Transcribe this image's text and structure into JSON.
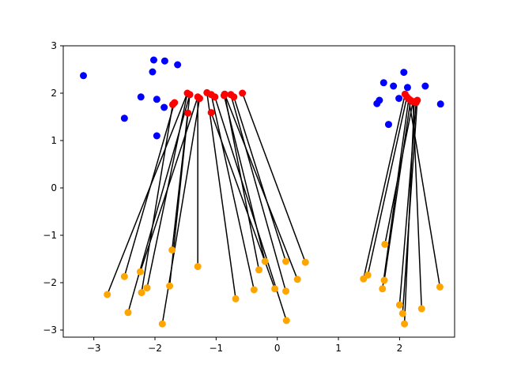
{
  "chart_data": {
    "type": "scatter",
    "title": "",
    "xlabel": "",
    "ylabel": "",
    "xlim": [
      -3.5,
      2.9
    ],
    "ylim": [
      -3.15,
      3.0
    ],
    "grid": false,
    "xticks": [
      -3,
      -2,
      -1,
      0,
      1,
      2
    ],
    "yticks": [
      -3,
      -2,
      -1,
      0,
      1,
      2,
      3
    ],
    "xtick_labels": [
      "−3",
      "−2",
      "−1",
      "0",
      "1",
      "2"
    ],
    "ytick_labels": [
      "−3",
      "−2",
      "−1",
      "0",
      "1",
      "2",
      "3"
    ],
    "colors": {
      "blue": "#0000ff",
      "red": "#ff0000",
      "orange": "#ffa500",
      "line": "#000000"
    },
    "blue_points": [
      [
        -3.17,
        2.37
      ],
      [
        -2.02,
        2.7
      ],
      [
        -1.84,
        2.68
      ],
      [
        -1.63,
        2.6
      ],
      [
        -2.04,
        2.45
      ],
      [
        -2.23,
        1.92
      ],
      [
        -1.97,
        1.87
      ],
      [
        -1.85,
        1.7
      ],
      [
        -2.5,
        1.47
      ],
      [
        -1.97,
        1.1
      ],
      [
        2.07,
        2.44
      ],
      [
        1.74,
        2.22
      ],
      [
        1.9,
        2.15
      ],
      [
        2.13,
        2.12
      ],
      [
        2.42,
        2.15
      ],
      [
        1.99,
        1.89
      ],
      [
        1.67,
        1.85
      ],
      [
        1.63,
        1.78
      ],
      [
        2.67,
        1.77
      ],
      [
        1.82,
        1.34
      ]
    ],
    "red_points": [
      [
        -1.47,
        2.0
      ],
      [
        -1.43,
        1.97
      ],
      [
        -1.3,
        1.92
      ],
      [
        -1.27,
        1.89
      ],
      [
        -1.15,
        2.01
      ],
      [
        -1.08,
        1.97
      ],
      [
        -1.02,
        1.92
      ],
      [
        -0.87,
        1.95
      ],
      [
        -0.86,
        1.98
      ],
      [
        -0.76,
        1.97
      ],
      [
        -0.71,
        1.92
      ],
      [
        -0.57,
        2.0
      ],
      [
        -1.68,
        1.8
      ],
      [
        -1.71,
        1.76
      ],
      [
        -1.46,
        1.58
      ],
      [
        -1.08,
        1.59
      ],
      [
        2.09,
        1.98
      ],
      [
        2.12,
        1.92
      ],
      [
        2.15,
        1.88
      ],
      [
        2.18,
        1.85
      ],
      [
        2.22,
        1.82
      ],
      [
        2.27,
        1.8
      ],
      [
        2.29,
        1.85
      ],
      [
        2.24,
        1.82
      ]
    ],
    "pairs": [
      [
        [
          -1.47,
          2.0
        ],
        [
          -2.78,
          -2.25
        ]
      ],
      [
        [
          -1.43,
          1.97
        ],
        [
          -2.44,
          -2.63
        ]
      ],
      [
        [
          -1.3,
          1.92
        ],
        [
          -2.24,
          -1.77
        ]
      ],
      [
        [
          -1.27,
          1.89
        ],
        [
          -1.88,
          -2.87
        ]
      ],
      [
        [
          -1.47,
          2.0
        ],
        [
          -2.13,
          -2.11
        ]
      ],
      [
        [
          -1.68,
          1.8
        ],
        [
          -2.5,
          -1.87
        ]
      ],
      [
        [
          -1.71,
          1.76
        ],
        [
          -2.22,
          -2.21
        ]
      ],
      [
        [
          -1.46,
          1.58
        ],
        [
          -1.76,
          -2.07
        ]
      ],
      [
        [
          -1.43,
          1.97
        ],
        [
          -1.72,
          -1.31
        ]
      ],
      [
        [
          -1.3,
          1.92
        ],
        [
          -1.3,
          -1.66
        ]
      ],
      [
        [
          -1.15,
          2.01
        ],
        [
          -0.68,
          -2.34
        ]
      ],
      [
        [
          -1.08,
          1.97
        ],
        [
          -0.38,
          -2.15
        ]
      ],
      [
        [
          -1.08,
          1.59
        ],
        [
          -0.04,
          -2.13
        ]
      ],
      [
        [
          -1.02,
          1.92
        ],
        [
          0.15,
          -2.8
        ]
      ],
      [
        [
          -0.87,
          1.95
        ],
        [
          -0.2,
          -1.55
        ]
      ],
      [
        [
          -0.86,
          1.98
        ],
        [
          -0.3,
          -1.73
        ]
      ],
      [
        [
          -0.76,
          1.97
        ],
        [
          0.14,
          -2.18
        ]
      ],
      [
        [
          -0.71,
          1.92
        ],
        [
          0.14,
          -1.55
        ]
      ],
      [
        [
          -0.57,
          2.0
        ],
        [
          0.46,
          -1.57
        ]
      ],
      [
        [
          -0.86,
          1.98
        ],
        [
          0.33,
          -1.93
        ]
      ],
      [
        [
          2.09,
          1.98
        ],
        [
          1.41,
          -1.92
        ]
      ],
      [
        [
          2.12,
          1.92
        ],
        [
          1.48,
          -1.84
        ]
      ],
      [
        [
          2.15,
          1.88
        ],
        [
          1.72,
          -2.13
        ]
      ],
      [
        [
          2.18,
          1.85
        ],
        [
          1.75,
          -1.95
        ]
      ],
      [
        [
          2.22,
          1.82
        ],
        [
          1.76,
          -1.19
        ]
      ],
      [
        [
          2.27,
          1.8
        ],
        [
          2.0,
          -2.47
        ]
      ],
      [
        [
          2.29,
          1.85
        ],
        [
          2.05,
          -2.65
        ]
      ],
      [
        [
          2.24,
          1.82
        ],
        [
          2.08,
          -2.87
        ]
      ],
      [
        [
          2.22,
          1.82
        ],
        [
          2.36,
          -2.55
        ]
      ],
      [
        [
          2.15,
          1.88
        ],
        [
          2.66,
          -2.09
        ]
      ]
    ]
  }
}
